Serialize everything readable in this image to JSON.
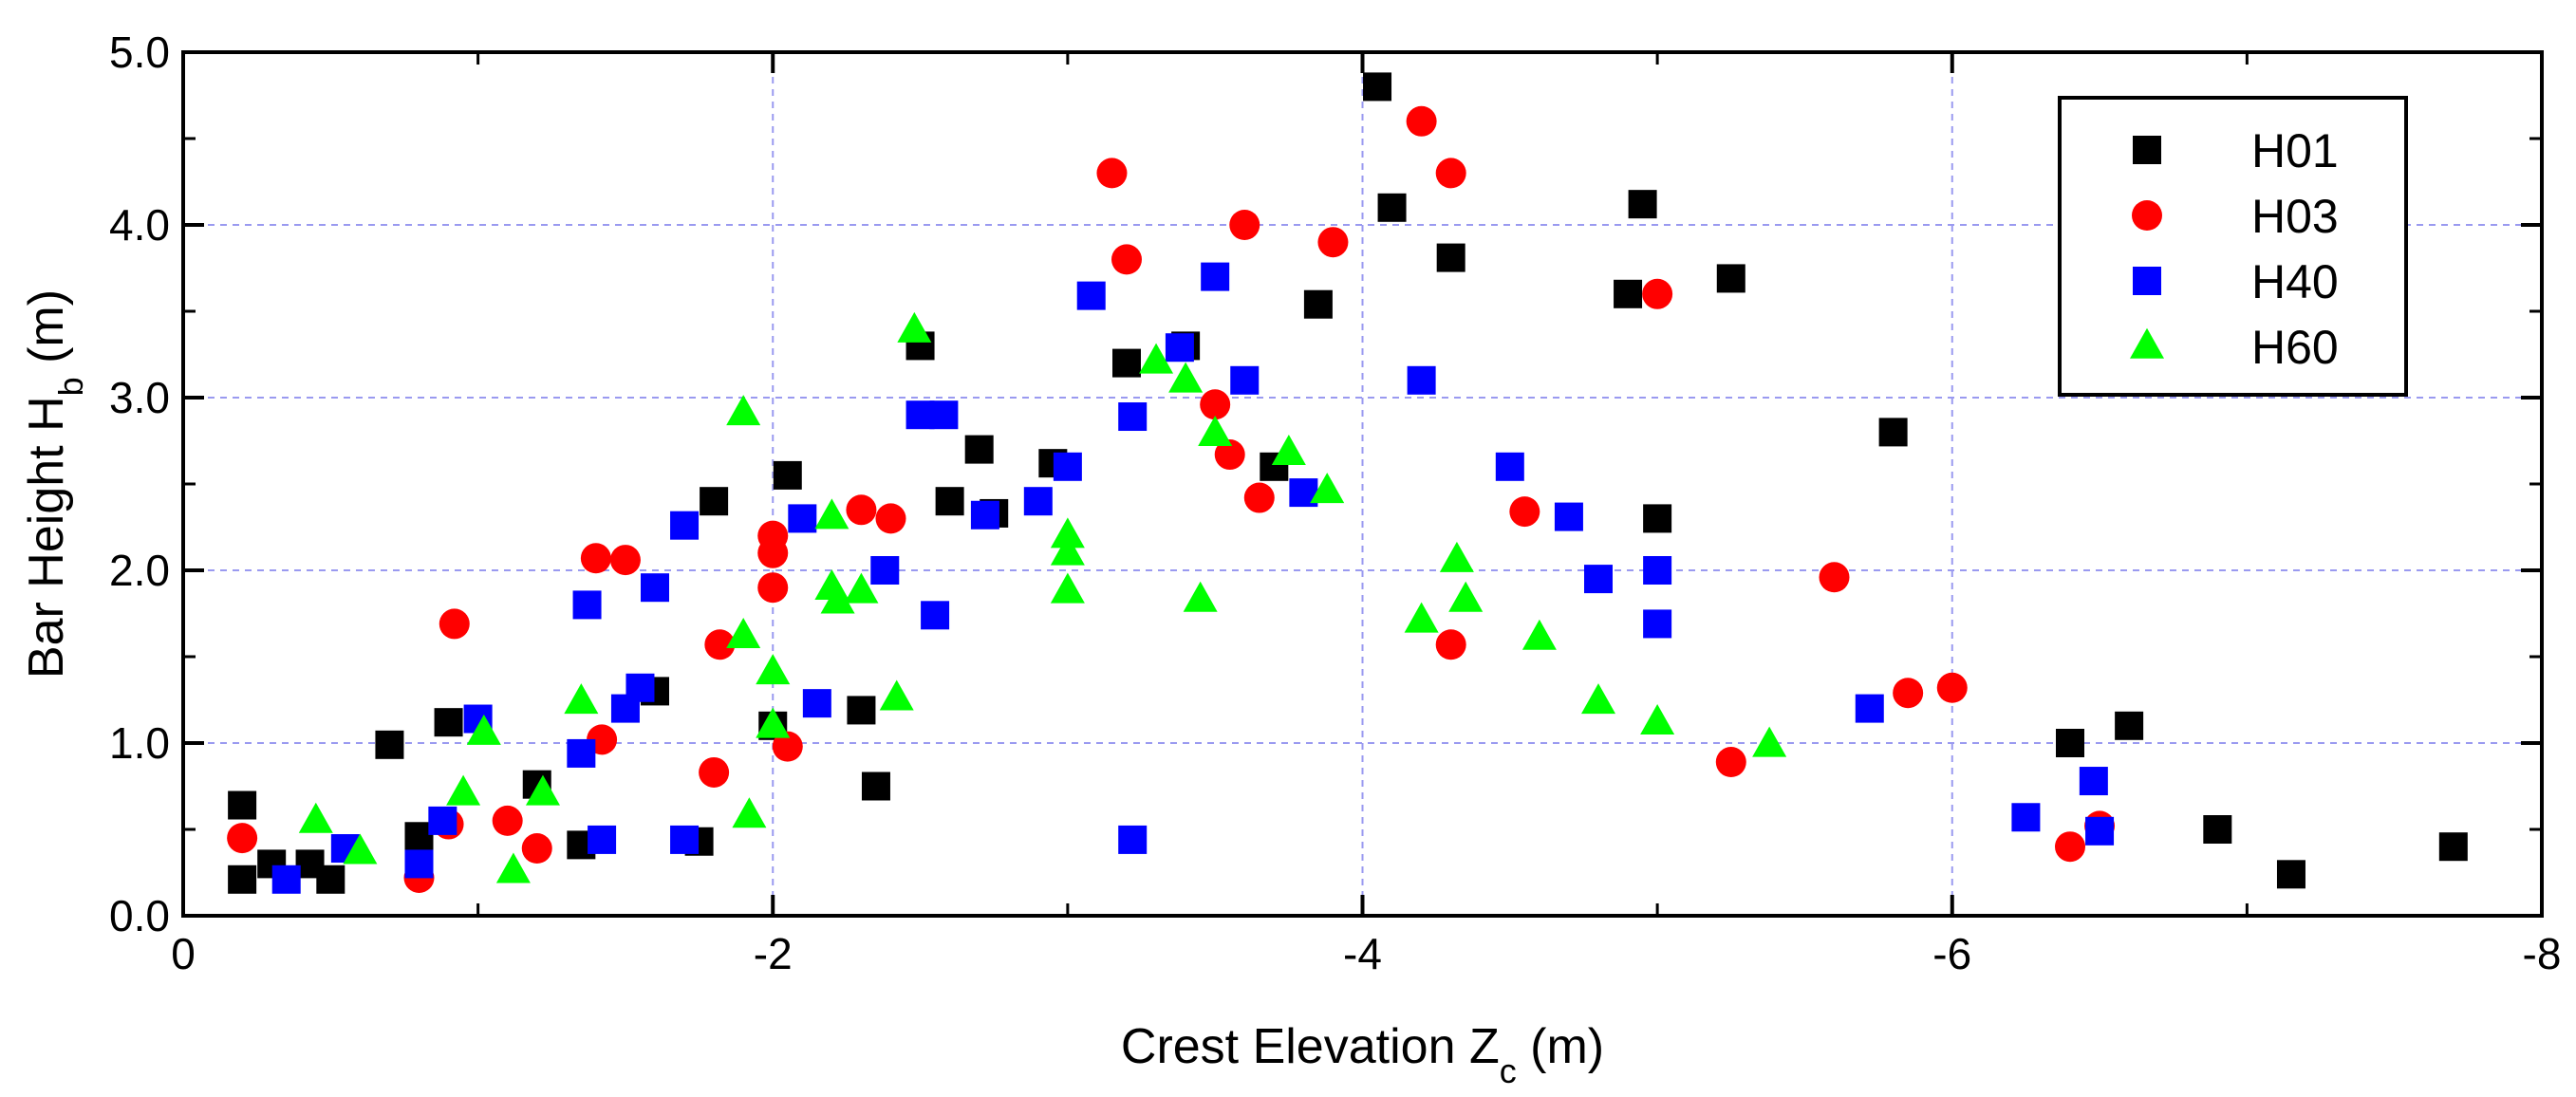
{
  "chart_data": {
    "type": "scatter",
    "title": "",
    "xlabel": "Crest Elevation Z",
    "xlabel_sub": "c",
    "xlabel_unit": " (m)",
    "ylabel": "Bar Height H",
    "ylabel_sub": "b",
    "ylabel_unit": " (m)",
    "xlim": [
      0,
      -8
    ],
    "ylim": [
      0,
      5
    ],
    "xticks": [
      0,
      -2,
      -4,
      -6,
      -8
    ],
    "xtick_labels": [
      "0",
      "-2",
      "-4",
      "-6",
      "-8"
    ],
    "yticks": [
      0,
      1,
      2,
      3,
      4,
      5
    ],
    "ytick_labels": [
      "0.0",
      "1.0",
      "2.0",
      "3.0",
      "4.0",
      "5.0"
    ],
    "grid": true,
    "legend_position": "top-right",
    "series": [
      {
        "name": "H01",
        "marker": "square",
        "color": "#000000",
        "x": [
          -0.2,
          -0.2,
          -0.3,
          -0.43,
          -0.5,
          -0.7,
          -0.8,
          -0.9,
          -1.2,
          -1.35,
          -1.6,
          -1.75,
          -1.8,
          -2.0,
          -2.05,
          -2.3,
          -2.35,
          -2.5,
          -2.6,
          -2.7,
          -2.75,
          -2.95,
          -3.2,
          -3.4,
          -3.7,
          -3.85,
          -4.05,
          -4.1,
          -4.3,
          -4.9,
          -4.95,
          -5.0,
          -5.25,
          -5.8,
          -6.4,
          -6.6,
          -6.9,
          -7.15,
          -7.7
        ],
        "y": [
          0.64,
          0.21,
          0.3,
          0.3,
          0.21,
          0.99,
          0.46,
          1.12,
          0.76,
          0.41,
          1.3,
          0.43,
          2.4,
          1.1,
          2.55,
          1.19,
          0.75,
          3.3,
          2.4,
          2.7,
          2.33,
          2.62,
          3.2,
          3.3,
          2.6,
          3.54,
          4.8,
          4.1,
          3.81,
          3.6,
          4.12,
          2.3,
          3.69,
          2.8,
          1.0,
          1.1,
          0.5,
          0.24,
          0.4
        ]
      },
      {
        "name": "H03",
        "marker": "circle",
        "color": "#ff0000",
        "x": [
          -0.2,
          -0.8,
          -0.9,
          -0.92,
          -1.1,
          -1.2,
          -1.4,
          -1.42,
          -1.5,
          -1.8,
          -1.82,
          -2.0,
          -2.0,
          -2.0,
          -2.05,
          -2.3,
          -2.4,
          -3.15,
          -3.2,
          -3.5,
          -3.55,
          -3.6,
          -3.65,
          -3.9,
          -4.2,
          -4.3,
          -4.3,
          -4.55,
          -5.0,
          -5.25,
          -5.6,
          -5.85,
          -6.0,
          -6.4,
          -6.5
        ],
        "y": [
          0.45,
          0.22,
          0.53,
          1.69,
          0.55,
          0.39,
          2.07,
          1.02,
          2.06,
          0.83,
          1.57,
          2.2,
          2.1,
          1.9,
          0.98,
          2.35,
          2.3,
          4.3,
          3.8,
          2.96,
          2.67,
          4.0,
          2.42,
          3.9,
          4.6,
          4.3,
          1.57,
          2.34,
          3.6,
          0.89,
          1.96,
          1.29,
          1.32,
          0.4,
          0.52
        ]
      },
      {
        "name": "H40",
        "marker": "square",
        "color": "#0000ff",
        "x": [
          -0.35,
          -0.55,
          -0.8,
          -0.88,
          -1.0,
          -1.35,
          -1.37,
          -1.42,
          -1.5,
          -1.55,
          -1.6,
          -1.7,
          -1.7,
          -2.1,
          -2.15,
          -2.38,
          -2.5,
          -2.55,
          -2.58,
          -2.72,
          -2.9,
          -3.0,
          -3.08,
          -3.22,
          -3.22,
          -3.38,
          -3.5,
          -3.6,
          -3.8,
          -4.2,
          -4.5,
          -4.7,
          -4.8,
          -5.0,
          -5.0,
          -5.72,
          -6.25,
          -6.48,
          -6.5
        ],
        "y": [
          0.21,
          0.39,
          0.3,
          0.55,
          1.14,
          0.94,
          1.8,
          0.44,
          1.2,
          1.32,
          1.9,
          2.26,
          0.44,
          2.3,
          1.23,
          2.0,
          2.9,
          1.74,
          2.9,
          2.32,
          2.4,
          2.6,
          3.59,
          2.89,
          0.44,
          3.29,
          3.7,
          3.1,
          2.45,
          3.1,
          2.6,
          2.31,
          1.95,
          2.0,
          1.69,
          1.2,
          0.57,
          0.78,
          0.49
        ]
      },
      {
        "name": "H60",
        "marker": "triangle",
        "color": "#00ff00",
        "x": [
          -0.45,
          -0.6,
          -0.95,
          -1.02,
          -1.12,
          -1.22,
          -1.35,
          -1.9,
          -1.9,
          -1.92,
          -2.0,
          -2.0,
          -2.2,
          -2.2,
          -2.22,
          -2.3,
          -2.42,
          -2.48,
          -3.0,
          -3.0,
          -3.0,
          -3.3,
          -3.4,
          -3.45,
          -3.5,
          -3.75,
          -3.88,
          -4.2,
          -4.32,
          -4.35,
          -4.6,
          -4.8,
          -5.0,
          -5.38
        ],
        "y": [
          0.55,
          0.37,
          0.71,
          1.06,
          0.26,
          0.71,
          1.24,
          2.91,
          1.62,
          0.58,
          1.41,
          1.1,
          2.31,
          1.9,
          1.82,
          1.88,
          1.26,
          3.39,
          2.2,
          2.1,
          1.88,
          3.21,
          3.1,
          1.83,
          2.79,
          2.68,
          2.46,
          1.71,
          2.06,
          1.83,
          1.61,
          1.24,
          1.12,
          0.99
        ]
      }
    ]
  }
}
